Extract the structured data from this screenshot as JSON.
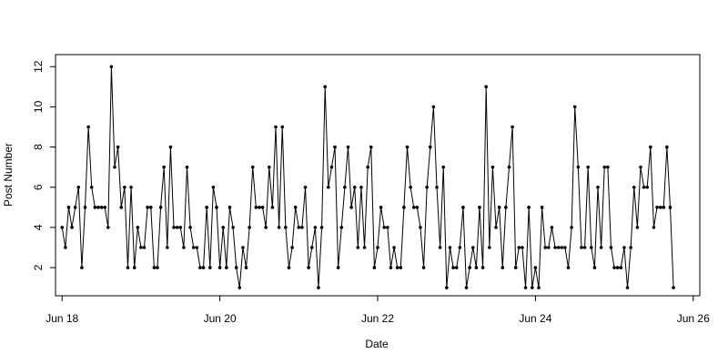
{
  "chart_data": {
    "type": "line",
    "title": "",
    "xlabel": "Date",
    "ylabel": "Post Number",
    "xlim": [
      "2015-06-17T22:00",
      "2015-06-26T02:00"
    ],
    "ylim": [
      0.6,
      12.6
    ],
    "x_ticks": [
      {
        "value": "2015-06-18T00:00",
        "label": "Jun 18"
      },
      {
        "value": "2015-06-20T00:00",
        "label": "Jun 20"
      },
      {
        "value": "2015-06-22T00:00",
        "label": "Jun 22"
      },
      {
        "value": "2015-06-24T00:00",
        "label": "Jun 24"
      },
      {
        "value": "2015-06-26T00:00",
        "label": "Jun 26"
      }
    ],
    "y_ticks": [
      2,
      4,
      6,
      8,
      10,
      12
    ],
    "grid": false,
    "legend": "none",
    "line_color": "#000000",
    "marker": "filled-circle",
    "series": [
      {
        "name": "",
        "x_start": "2015-06-18T00:00",
        "x_step_hours": 1,
        "values": [
          4,
          3,
          5,
          4,
          5,
          6,
          2,
          5,
          9,
          6,
          5,
          5,
          5,
          5,
          4,
          12,
          7,
          8,
          5,
          6,
          2,
          6,
          2,
          4,
          3,
          3,
          5,
          5,
          2,
          2,
          5,
          7,
          3,
          8,
          4,
          4,
          4,
          3,
          7,
          4,
          3,
          3,
          2,
          2,
          5,
          2,
          6,
          5,
          2,
          4,
          2,
          5,
          4,
          2,
          1,
          3,
          2,
          4,
          7,
          5,
          5,
          5,
          4,
          7,
          5,
          9,
          4,
          9,
          4,
          2,
          3,
          5,
          4,
          4,
          6,
          2,
          3,
          4,
          1,
          4,
          11,
          6,
          7,
          8,
          2,
          4,
          6,
          8,
          5,
          6,
          3,
          6,
          3,
          7,
          8,
          2,
          3,
          5,
          4,
          4,
          2,
          3,
          2,
          2,
          5,
          8,
          6,
          5,
          5,
          4,
          2,
          6,
          8,
          10,
          6,
          3,
          7,
          1,
          3,
          2,
          2,
          3,
          5,
          1,
          2,
          3,
          2,
          5,
          2,
          11,
          3,
          7,
          4,
          5,
          2,
          5,
          7,
          9,
          2,
          3,
          3,
          1,
          5,
          1,
          2,
          1,
          5,
          3,
          3,
          4,
          3,
          3,
          3,
          3,
          2,
          4,
          10,
          7,
          3,
          3,
          7,
          3,
          2,
          6,
          3,
          7,
          7,
          3,
          2,
          2,
          2,
          3,
          1,
          3,
          6,
          4,
          7,
          6,
          6,
          8,
          4,
          5,
          5,
          5,
          8,
          5,
          1
        ]
      }
    ]
  }
}
